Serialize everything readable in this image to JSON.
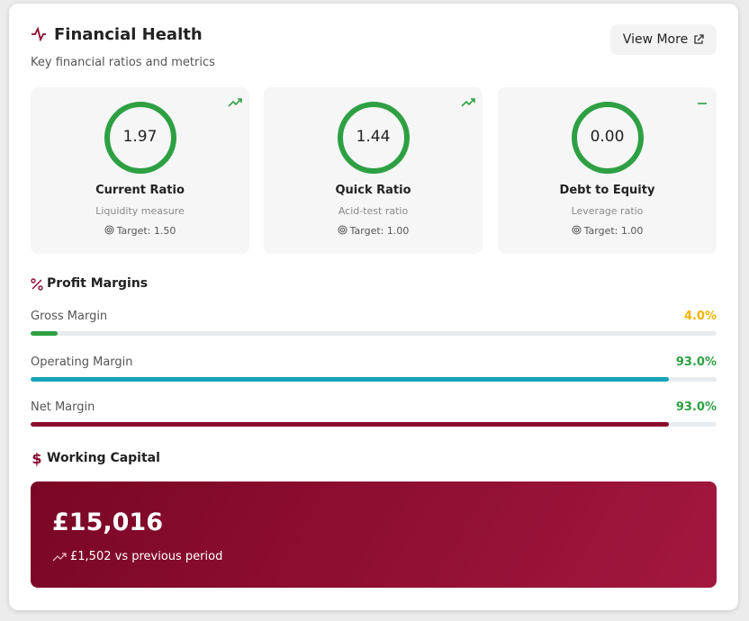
{
  "header": {
    "title": "Financial Health",
    "subtitle": "Key financial ratios and metrics",
    "button": "View More"
  },
  "ratios": [
    {
      "value": "1.97",
      "name": "Current Ratio",
      "description": "Liquidity measure",
      "target": "Target: 1.50"
    },
    {
      "value": "1.44",
      "name": "Quick Ratio",
      "description": "Acid-test ratio",
      "target": "Target: 1.00"
    },
    {
      "value": "0.00",
      "name": "Debt to Equity",
      "description": "Leverage ratio",
      "target": "Target: 1.00"
    }
  ],
  "profit_margins": {
    "title": "Profit Margins",
    "items": [
      {
        "label": "Gross Margin",
        "value": 4.0,
        "value_label": "4.0%"
      },
      {
        "label": "Operating Margin",
        "value": 93.0,
        "value_label": "93.0%"
      },
      {
        "label": "Net Margin",
        "value": 93.0,
        "value_label": "93.0%"
      }
    ]
  },
  "working_capital": {
    "title": "Working Capital",
    "amount": "£15,016",
    "change": "£1,502 vs previous period"
  }
}
